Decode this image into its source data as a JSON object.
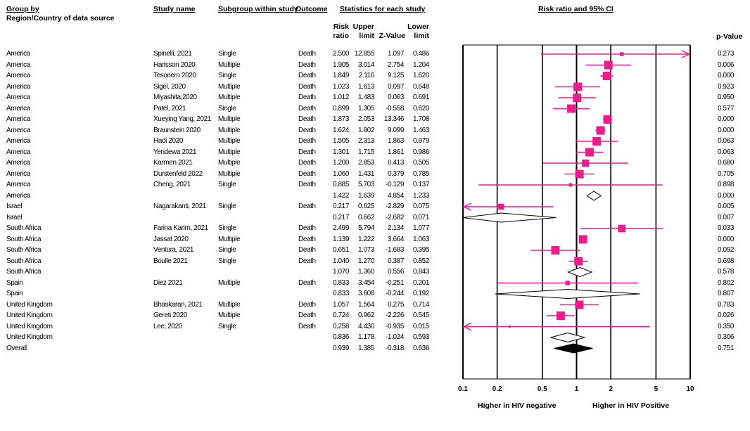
{
  "headers": {
    "group_by": "Group by",
    "group_by_sub": "Region/Country of data source",
    "study_name": "Study name",
    "subgroup": "Subgroup within study",
    "outcome": "Outcome",
    "stats": "Statistics for each study",
    "plot_title": "Risk ratio and 95% CI",
    "risk_ratio": [
      "Risk",
      "ratio"
    ],
    "upper_limit": [
      "Upper",
      "limit"
    ],
    "z_value": "Z-Value",
    "lower_limit": [
      "Lower",
      "limit"
    ],
    "p_value": "p-Value"
  },
  "footer": {
    "left": "Higher in HIV negative",
    "right": "Higher in HIV Positive"
  },
  "colors": {
    "marker": "#ec1c8c",
    "summary": "#000000"
  },
  "chart_data": {
    "type": "forest",
    "x_scale": "log",
    "xlim": [
      0.1,
      10
    ],
    "x_ticks": [
      "0.1",
      "0.2",
      "0.5",
      "1",
      "2",
      "5",
      "10"
    ],
    "rows": [
      {
        "region": "America",
        "study": "Spinelli, 2021",
        "subgroup": "Single",
        "outcome": "Death",
        "rr": "2.500",
        "upper": "12.855",
        "z": "1.097",
        "lower": "0.486",
        "p": "0.273",
        "kind": "study",
        "arrow_right": true
      },
      {
        "region": "America",
        "study": "Harisson 2020",
        "subgroup": "Multiple",
        "outcome": "Death",
        "rr": "1.905",
        "upper": "3.014",
        "z": "2.754",
        "lower": "1.204",
        "p": "0.006",
        "kind": "study"
      },
      {
        "region": "America",
        "study": "Tesoriero 2020",
        "subgroup": "Single",
        "outcome": "Death",
        "rr": "1.849",
        "upper": "2.110",
        "z": "9.125",
        "lower": "1.620",
        "p": "0.000",
        "kind": "study"
      },
      {
        "region": "America",
        "study": "Sigel, 2020",
        "subgroup": "Multiple",
        "outcome": "Death",
        "rr": "1.023",
        "upper": "1.613",
        "z": "0.097",
        "lower": "0.648",
        "p": "0.923",
        "kind": "study"
      },
      {
        "region": "America",
        "study": "Miyashita,2020",
        "subgroup": "Multiple",
        "outcome": "Death",
        "rr": "1.012",
        "upper": "1.483",
        "z": "0.063",
        "lower": "0.691",
        "p": "0.950",
        "kind": "study"
      },
      {
        "region": "America",
        "study": "Patel, 2021",
        "subgroup": "Single",
        "outcome": "Death",
        "rr": "0.899",
        "upper": "1.305",
        "z": "-0.558",
        "lower": "0.620",
        "p": "0.577",
        "kind": "study"
      },
      {
        "region": "America",
        "study": "Xueying Yang, 2021",
        "subgroup": "Multiple",
        "outcome": "Death",
        "rr": "1.873",
        "upper": "2.053",
        "z": "13.346",
        "lower": "1.708",
        "p": "0.000",
        "kind": "study"
      },
      {
        "region": "America",
        "study": "Braunstein 2020",
        "subgroup": "Multiple",
        "outcome": "Death",
        "rr": "1.624",
        "upper": "1.802",
        "z": "9.099",
        "lower": "1.463",
        "p": "0.000",
        "kind": "study"
      },
      {
        "region": "America",
        "study": "Hadi 2020",
        "subgroup": "Multiple",
        "outcome": "Death",
        "rr": "1.505",
        "upper": "2.313",
        "z": "1.863",
        "lower": "0.979",
        "p": "0.063",
        "kind": "study"
      },
      {
        "region": "America",
        "study": "Yendewa 2021",
        "subgroup": "Multiple",
        "outcome": "Death",
        "rr": "1.301",
        "upper": "1.715",
        "z": "1.861",
        "lower": "0.986",
        "p": "0.063",
        "kind": "study"
      },
      {
        "region": "America",
        "study": "Karmen 2021",
        "subgroup": "Multiple",
        "outcome": "Death",
        "rr": "1.200",
        "upper": "2.853",
        "z": "0.413",
        "lower": "0.505",
        "p": "0.680",
        "kind": "study"
      },
      {
        "region": "America",
        "study": "Durstenfeld 2022",
        "subgroup": "Multiple",
        "outcome": "Death",
        "rr": "1.060",
        "upper": "1.431",
        "z": "0.379",
        "lower": "0.785",
        "p": "0.705",
        "kind": "study"
      },
      {
        "region": "America",
        "study": "Cheng, 2021",
        "subgroup": "Single",
        "outcome": "Death",
        "rr": "0.885",
        "upper": "5.703",
        "z": "-0.129",
        "lower": "0.137",
        "p": "0.898",
        "kind": "study"
      },
      {
        "region": "America",
        "study": "",
        "subgroup": "",
        "outcome": "",
        "rr": "1.422",
        "upper": "1.639",
        "z": "4.854",
        "lower": "1.233",
        "p": "0.000",
        "kind": "subtotal"
      },
      {
        "region": "Israel",
        "study": "Nagarakanti, 2021",
        "subgroup": "Single",
        "outcome": "Death",
        "rr": "0.217",
        "upper": "0.625",
        "z": "-2.829",
        "lower": "0.075",
        "p": "0.005",
        "kind": "study",
        "arrow_left": true
      },
      {
        "region": "Israel",
        "study": "",
        "subgroup": "",
        "outcome": "",
        "rr": "0.217",
        "upper": "0.662",
        "z": "-2.682",
        "lower": "0.071",
        "p": "0.007",
        "kind": "subtotal",
        "arrow_left": true
      },
      {
        "region": "South Africa",
        "study": "Farina Karim, 2021",
        "subgroup": "Single",
        "outcome": "Death",
        "rr": "2.499",
        "upper": "5.794",
        "z": "2.134",
        "lower": "1.077",
        "p": "0.033",
        "kind": "study"
      },
      {
        "region": "South Africa",
        "study": "Jassat 2020",
        "subgroup": "Multiple",
        "outcome": "Death",
        "rr": "1.139",
        "upper": "1.222",
        "z": "3.664",
        "lower": "1.063",
        "p": "0.000",
        "kind": "study"
      },
      {
        "region": "South Africa",
        "study": "Ventura, 2021",
        "subgroup": "Single",
        "outcome": "Death",
        "rr": "0.651",
        "upper": "1.073",
        "z": "-1.683",
        "lower": "0.395",
        "p": "0.092",
        "kind": "study"
      },
      {
        "region": "South Africa",
        "study": "Boulle 2021",
        "subgroup": "Single",
        "outcome": "Death",
        "rr": "1.040",
        "upper": "1.270",
        "z": "0.387",
        "lower": "0.852",
        "p": "0.698",
        "kind": "study"
      },
      {
        "region": "South Africa",
        "study": "",
        "subgroup": "",
        "outcome": "",
        "rr": "1.070",
        "upper": "1.360",
        "z": "0.556",
        "lower": "0.843",
        "p": "0.578",
        "kind": "subtotal"
      },
      {
        "region": "Spain",
        "study": "Diez 2021",
        "subgroup": "Multiple",
        "outcome": "Death",
        "rr": "0.833",
        "upper": "3.454",
        "z": "-0.251",
        "lower": "0.201",
        "p": "0.802",
        "kind": "study"
      },
      {
        "region": "Spain",
        "study": "",
        "subgroup": "",
        "outcome": "",
        "rr": "0.833",
        "upper": "3.608",
        "z": "-0.244",
        "lower": "0.192",
        "p": "0.807",
        "kind": "subtotal"
      },
      {
        "region": "United Kingdom",
        "study": "Bhaskaran, 2021",
        "subgroup": "Multiple",
        "outcome": "Death",
        "rr": "1.057",
        "upper": "1.564",
        "z": "0.275",
        "lower": "0.714",
        "p": "0.783",
        "kind": "study"
      },
      {
        "region": "United Kingdom",
        "study": "Gereti 2020",
        "subgroup": "Multiple",
        "outcome": "Death",
        "rr": "0.724",
        "upper": "0.962",
        "z": "-2.226",
        "lower": "0.545",
        "p": "0.026",
        "kind": "study"
      },
      {
        "region": "United Kingdom",
        "study": "Lee, 2020",
        "subgroup": "Single",
        "outcome": "Death",
        "rr": "0.258",
        "upper": "4.430",
        "z": "-0.935",
        "lower": "0.015",
        "p": "0.350",
        "kind": "study",
        "arrow_left": true
      },
      {
        "region": "United Kingdom",
        "study": "",
        "subgroup": "",
        "outcome": "",
        "rr": "0.836",
        "upper": "1.178",
        "z": "-1.024",
        "lower": "0.593",
        "p": "0.306",
        "kind": "subtotal"
      },
      {
        "region": "Overall",
        "study": "",
        "subgroup": "",
        "outcome": "",
        "rr": "0.939",
        "upper": "1.385",
        "z": "-0.318",
        "lower": "0.636",
        "p": "0.751",
        "kind": "overall"
      }
    ]
  }
}
